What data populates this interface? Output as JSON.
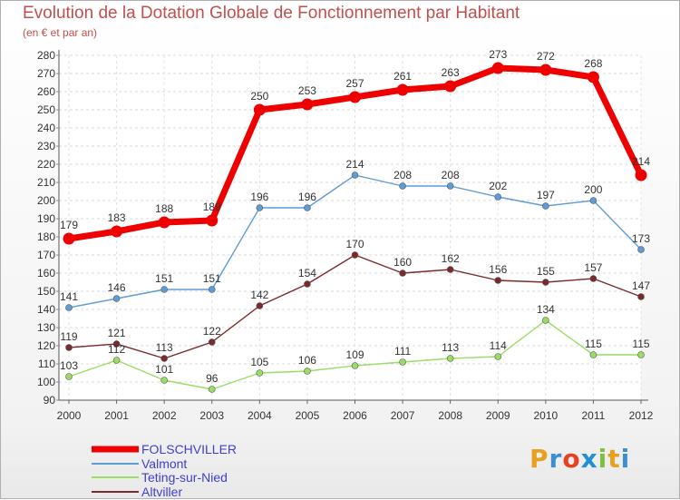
{
  "chart_data": {
    "type": "line",
    "title": "Evolution de la Dotation Globale de Fonctionnement par Habitant",
    "subtitle": "(en € et par an)",
    "xlabel": "",
    "ylabel": "",
    "x": [
      "2000",
      "2001",
      "2002",
      "2003",
      "2004",
      "2005",
      "2006",
      "2007",
      "2008",
      "2009",
      "2010",
      "2011",
      "2012"
    ],
    "ylim": [
      90,
      280
    ],
    "yticks": [
      "90",
      "100",
      "110",
      "120",
      "130",
      "140",
      "150",
      "160",
      "170",
      "180",
      "190",
      "200",
      "210",
      "220",
      "230",
      "240",
      "250",
      "260",
      "270",
      "280"
    ],
    "grid": true,
    "legend_position": "bottom-left",
    "series": [
      {
        "name": "FOLSCHVILLER",
        "color": "#ee0000",
        "values": [
          179,
          183,
          188,
          189,
          250,
          253,
          257,
          261,
          263,
          273,
          272,
          268,
          214
        ]
      },
      {
        "name": "Valmont",
        "color": "#5f9cd5",
        "values": [
          141,
          146,
          151,
          151,
          196,
          196,
          214,
          208,
          208,
          202,
          197,
          200,
          173
        ]
      },
      {
        "name": "Teting-sur-Nied",
        "color": "#99dd66",
        "values": [
          103,
          112,
          101,
          96,
          105,
          106,
          109,
          111,
          113,
          114,
          134,
          115,
          115
        ]
      },
      {
        "name": "Altviller",
        "color": "#7a2a2a",
        "values": [
          119,
          121,
          113,
          122,
          142,
          154,
          170,
          160,
          162,
          156,
          155,
          157,
          147
        ]
      }
    ]
  },
  "logo": {
    "text": "Proxiti"
  }
}
